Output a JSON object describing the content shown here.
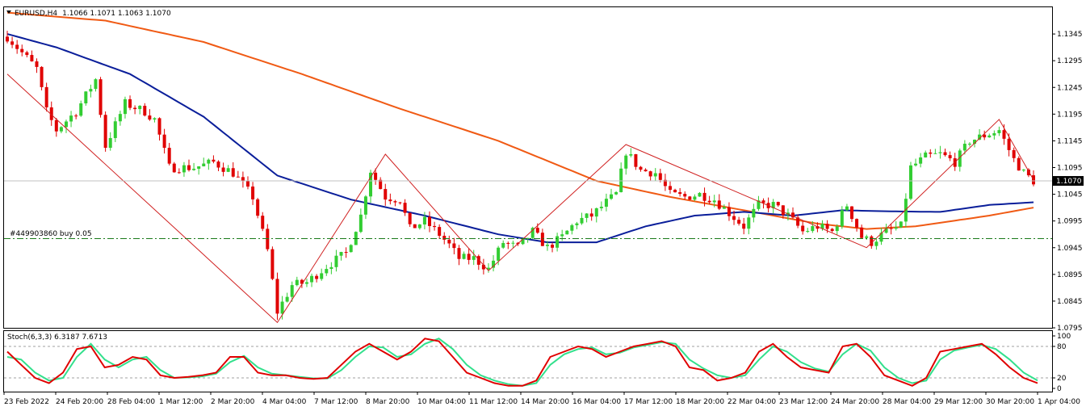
{
  "header": {
    "symbol": "EURUSD,H4",
    "ohlc": "1.1066 1.1071 1.1063 1.1070"
  },
  "colors": {
    "bull": "#32cd32",
    "bear": "#e00000",
    "ma_fast": "#0a1e9a",
    "ma_slow": "#f05a14",
    "zigzag": "#d02020",
    "order_line": "#1a7a1a",
    "stoch_main": "#e00000",
    "stoch_signal": "#32e08c",
    "price_line": "#c0c0c0"
  },
  "chart_data": [
    {
      "type": "candlestick",
      "ylim": [
        1.0795,
        1.1395
      ],
      "yticks": [
        "1.1345",
        "1.1295",
        "1.1245",
        "1.1195",
        "1.1145",
        "1.1095",
        "1.1045",
        "1.0995",
        "1.0945",
        "1.0895",
        "1.0845",
        "1.0795"
      ],
      "current_price": "1.1070",
      "order": {
        "label": "#449903860 buy 0.05",
        "price": 1.0962
      },
      "zigzag": [
        {
          "i": 0,
          "p": 1.127
        },
        {
          "i": 55,
          "p": 1.0805
        },
        {
          "i": 77,
          "p": 1.112
        },
        {
          "i": 98,
          "p": 1.0902
        },
        {
          "i": 126,
          "p": 1.1138
        },
        {
          "i": 175,
          "p": 1.0945
        },
        {
          "i": 202,
          "p": 1.1185
        },
        {
          "i": 209,
          "p": 1.1072
        }
      ],
      "ma_fast": [
        {
          "i": 0,
          "p": 1.1345
        },
        {
          "i": 10,
          "p": 1.132
        },
        {
          "i": 25,
          "p": 1.127
        },
        {
          "i": 40,
          "p": 1.119
        },
        {
          "i": 55,
          "p": 1.108
        },
        {
          "i": 70,
          "p": 1.1035
        },
        {
          "i": 85,
          "p": 1.1005
        },
        {
          "i": 100,
          "p": 1.097
        },
        {
          "i": 110,
          "p": 1.0955
        },
        {
          "i": 120,
          "p": 1.0955
        },
        {
          "i": 130,
          "p": 1.0985
        },
        {
          "i": 140,
          "p": 1.1005
        },
        {
          "i": 150,
          "p": 1.1012
        },
        {
          "i": 160,
          "p": 1.1005
        },
        {
          "i": 170,
          "p": 1.1015
        },
        {
          "i": 180,
          "p": 1.1013
        },
        {
          "i": 190,
          "p": 1.1012
        },
        {
          "i": 200,
          "p": 1.1025
        },
        {
          "i": 209,
          "p": 1.103
        }
      ],
      "ma_slow": [
        {
          "i": 0,
          "p": 1.1385
        },
        {
          "i": 20,
          "p": 1.137
        },
        {
          "i": 40,
          "p": 1.133
        },
        {
          "i": 60,
          "p": 1.127
        },
        {
          "i": 80,
          "p": 1.1205
        },
        {
          "i": 100,
          "p": 1.1145
        },
        {
          "i": 120,
          "p": 1.107
        },
        {
          "i": 135,
          "p": 1.104
        },
        {
          "i": 150,
          "p": 1.1015
        },
        {
          "i": 165,
          "p": 1.099
        },
        {
          "i": 175,
          "p": 1.098
        },
        {
          "i": 185,
          "p": 1.0985
        },
        {
          "i": 200,
          "p": 1.1005
        },
        {
          "i": 209,
          "p": 1.102
        }
      ],
      "anchors": [
        {
          "i": 0,
          "p": 1.134
        },
        {
          "i": 3,
          "p": 1.131
        },
        {
          "i": 6,
          "p": 1.128
        },
        {
          "i": 8,
          "p": 1.12
        },
        {
          "i": 10,
          "p": 1.1165
        },
        {
          "i": 14,
          "p": 1.12
        },
        {
          "i": 18,
          "p": 1.126
        },
        {
          "i": 20,
          "p": 1.1135
        },
        {
          "i": 24,
          "p": 1.1215
        },
        {
          "i": 28,
          "p": 1.12
        },
        {
          "i": 30,
          "p": 1.1185
        },
        {
          "i": 33,
          "p": 1.1095
        },
        {
          "i": 38,
          "p": 1.1095
        },
        {
          "i": 42,
          "p": 1.1105
        },
        {
          "i": 46,
          "p": 1.1085
        },
        {
          "i": 50,
          "p": 1.104
        },
        {
          "i": 53,
          "p": 1.094
        },
        {
          "i": 55,
          "p": 1.0825
        },
        {
          "i": 58,
          "p": 1.0875
        },
        {
          "i": 61,
          "p": 1.088
        },
        {
          "i": 65,
          "p": 1.091
        },
        {
          "i": 69,
          "p": 1.0935
        },
        {
          "i": 72,
          "p": 1.1005
        },
        {
          "i": 74,
          "p": 1.109
        },
        {
          "i": 77,
          "p": 1.104
        },
        {
          "i": 80,
          "p": 1.1035
        },
        {
          "i": 82,
          "p": 1.098
        },
        {
          "i": 85,
          "p": 1.0995
        },
        {
          "i": 88,
          "p": 1.097
        },
        {
          "i": 90,
          "p": 1.095
        },
        {
          "i": 92,
          "p": 1.0925
        },
        {
          "i": 95,
          "p": 1.0925
        },
        {
          "i": 98,
          "p": 1.0905
        },
        {
          "i": 101,
          "p": 1.0955
        },
        {
          "i": 104,
          "p": 1.0945
        },
        {
          "i": 107,
          "p": 1.0975
        },
        {
          "i": 110,
          "p": 1.0945
        },
        {
          "i": 113,
          "p": 1.0965
        },
        {
          "i": 116,
          "p": 1.0995
        },
        {
          "i": 119,
          "p": 1.1005
        },
        {
          "i": 122,
          "p": 1.103
        },
        {
          "i": 124,
          "p": 1.1045
        },
        {
          "i": 126,
          "p": 1.1125
        },
        {
          "i": 129,
          "p": 1.109
        },
        {
          "i": 132,
          "p": 1.1085
        },
        {
          "i": 135,
          "p": 1.1045
        },
        {
          "i": 138,
          "p": 1.104
        },
        {
          "i": 141,
          "p": 1.1045
        },
        {
          "i": 144,
          "p": 1.1035
        },
        {
          "i": 147,
          "p": 1.101
        },
        {
          "i": 150,
          "p": 1.0985
        },
        {
          "i": 153,
          "p": 1.1025
        },
        {
          "i": 156,
          "p": 1.1025
        },
        {
          "i": 159,
          "p": 1.1005
        },
        {
          "i": 162,
          "p": 1.0975
        },
        {
          "i": 165,
          "p": 1.0985
        },
        {
          "i": 168,
          "p": 1.0975
        },
        {
          "i": 171,
          "p": 1.1025
        },
        {
          "i": 174,
          "p": 1.0965
        },
        {
          "i": 176,
          "p": 1.0955
        },
        {
          "i": 179,
          "p": 1.0975
        },
        {
          "i": 182,
          "p": 1.0985
        },
        {
          "i": 184,
          "p": 1.1095
        },
        {
          "i": 187,
          "p": 1.1115
        },
        {
          "i": 190,
          "p": 1.112
        },
        {
          "i": 193,
          "p": 1.1105
        },
        {
          "i": 196,
          "p": 1.1145
        },
        {
          "i": 199,
          "p": 1.1155
        },
        {
          "i": 202,
          "p": 1.1165
        },
        {
          "i": 205,
          "p": 1.111
        },
        {
          "i": 207,
          "p": 1.1085
        },
        {
          "i": 209,
          "p": 1.107
        }
      ],
      "xticks": [
        {
          "i": 0,
          "label": "23 Feb 2022"
        },
        {
          "i": 14,
          "label": "24 Feb 20:00"
        },
        {
          "i": 28,
          "label": "28 Feb 04:00"
        },
        {
          "i": 42,
          "label": "1 Mar 12:00"
        },
        {
          "i": 56,
          "label": "2 Mar 20:00"
        },
        {
          "i": 70,
          "label": "4 Mar 04:00"
        },
        {
          "i": 84,
          "label": "7 Mar 12:00"
        },
        {
          "i": 98,
          "label": "8 Mar 20:00"
        },
        {
          "i": 112,
          "label": "10 Mar 04:00"
        },
        {
          "i": 126,
          "label": "11 Mar 12:00"
        },
        {
          "i": 140,
          "label": "14 Mar 20:00"
        },
        {
          "i": 154,
          "label": "16 Mar 04:00"
        },
        {
          "i": 168,
          "label": "17 Mar 12:00"
        },
        {
          "i": 182,
          "label": "18 Mar 20:00"
        },
        {
          "i": 196,
          "label": "22 Mar 04:00"
        },
        {
          "i": 210,
          "label": "23 Mar 12:00"
        },
        {
          "i": 224,
          "label": "24 Mar 20:00"
        },
        {
          "i": 238,
          "label": "28 Mar 04:00"
        },
        {
          "i": 252,
          "label": "29 Mar 12:00"
        },
        {
          "i": 266,
          "label": "30 Mar 20:00"
        },
        {
          "i": 280,
          "label": "1 Apr 04:00"
        }
      ]
    },
    {
      "type": "line",
      "title": "Stoch(6,3,3) 6.3187 7.6713",
      "ylim": [
        0,
        100
      ],
      "levels": [
        80,
        20
      ],
      "yticks": [
        "100",
        "80",
        "20",
        "0"
      ],
      "series": [
        {
          "name": "main",
          "values": [
            70,
            45,
            20,
            10,
            30,
            75,
            80,
            40,
            45,
            60,
            55,
            25,
            20,
            22,
            25,
            30,
            60,
            60,
            30,
            25,
            25,
            20,
            18,
            20,
            45,
            70,
            85,
            70,
            55,
            70,
            95,
            90,
            60,
            30,
            20,
            10,
            5,
            5,
            15,
            60,
            70,
            80,
            75,
            60,
            70,
            80,
            85,
            90,
            80,
            40,
            35,
            15,
            20,
            30,
            70,
            85,
            60,
            40,
            35,
            30,
            80,
            85,
            60,
            25,
            15,
            5,
            20,
            70,
            75,
            80,
            85,
            65,
            40,
            20,
            10
          ]
        },
        {
          "name": "signal",
          "values": [
            60,
            55,
            30,
            15,
            20,
            60,
            85,
            55,
            40,
            55,
            60,
            35,
            20,
            21,
            23,
            28,
            50,
            62,
            40,
            28,
            25,
            22,
            19,
            19,
            35,
            60,
            80,
            78,
            60,
            65,
            85,
            95,
            75,
            45,
            25,
            15,
            8,
            5,
            10,
            45,
            65,
            75,
            78,
            65,
            68,
            78,
            83,
            88,
            85,
            55,
            38,
            25,
            20,
            25,
            55,
            80,
            70,
            50,
            38,
            32,
            65,
            85,
            72,
            40,
            20,
            10,
            15,
            55,
            72,
            78,
            83,
            75,
            55,
            30,
            15
          ]
        }
      ]
    }
  ]
}
